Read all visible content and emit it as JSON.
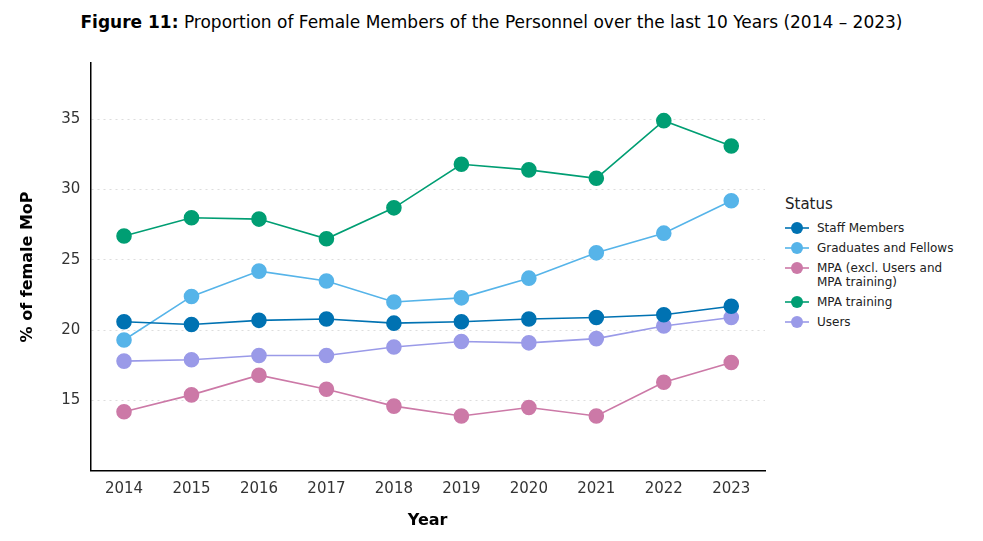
{
  "chart_data": {
    "type": "line",
    "title": "Figure 11: Proportion of Female Members of the Personnel over the last 10 Years (2014 – 2023)",
    "x_label": "Year",
    "y_label": "% of female MoP",
    "legend_title": "Status",
    "categories": [
      "2014",
      "2015",
      "2016",
      "2017",
      "2018",
      "2019",
      "2020",
      "2021",
      "2022",
      "2023"
    ],
    "series": [
      {
        "name": "Staff Members",
        "color": "#0072b2",
        "values": [
          20.6,
          20.4,
          20.7,
          20.8,
          20.5,
          20.6,
          20.8,
          20.9,
          21.1,
          21.7
        ]
      },
      {
        "name": "Graduates and Fellows",
        "color": "#56b4e9",
        "values": [
          19.3,
          22.4,
          24.2,
          23.5,
          22.0,
          22.3,
          23.7,
          25.5,
          26.9,
          29.2
        ]
      },
      {
        "name": "MPA (excl. Users and MPA training)",
        "color": "#cc79a7",
        "values": [
          14.2,
          15.4,
          16.8,
          15.8,
          14.6,
          13.9,
          14.5,
          13.9,
          16.3,
          17.7
        ]
      },
      {
        "name": "MPA training",
        "color": "#009e73",
        "values": [
          26.7,
          28.0,
          27.9,
          26.5,
          28.7,
          31.8,
          31.4,
          30.8,
          34.9,
          33.1
        ]
      },
      {
        "name": "Users",
        "color": "#9a9ae8",
        "values": [
          17.8,
          17.9,
          18.2,
          18.2,
          18.8,
          19.2,
          19.1,
          19.4,
          20.3,
          20.9
        ]
      }
    ],
    "ylim": [
      10,
      39
    ],
    "yticks": [
      15,
      20,
      25,
      30,
      35
    ],
    "grid": true,
    "legend": "right",
    "marker": "circle",
    "line_style": "solid"
  }
}
